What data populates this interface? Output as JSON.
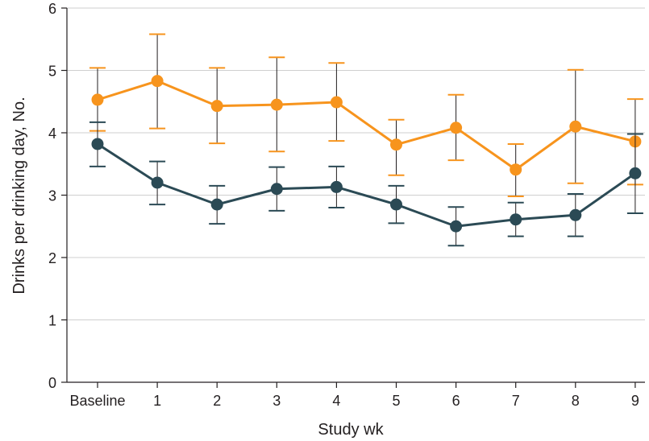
{
  "chart_data": {
    "type": "line",
    "xlabel": "Study wk",
    "ylabel": "Drinks per drinking day, No.",
    "ylim": [
      0,
      6
    ],
    "yticks": [
      "0",
      "1",
      "2",
      "3",
      "4",
      "5",
      "6"
    ],
    "categories": [
      "Baseline",
      "1",
      "2",
      "3",
      "4",
      "5",
      "6",
      "7",
      "8",
      "9"
    ],
    "grid": "horizontal",
    "series": [
      {
        "color": "#f7941d",
        "values": [
          4.53,
          4.83,
          4.43,
          4.45,
          4.49,
          3.81,
          4.08,
          3.41,
          4.1,
          3.86
        ],
        "upper": [
          5.04,
          5.58,
          5.04,
          5.21,
          5.12,
          4.21,
          4.61,
          3.82,
          5.01,
          4.54
        ],
        "lower": [
          4.03,
          4.07,
          3.83,
          3.7,
          3.87,
          3.32,
          3.56,
          2.98,
          3.19,
          3.17
        ]
      },
      {
        "color": "#2b4a55",
        "values": [
          3.82,
          3.2,
          2.85,
          3.1,
          3.13,
          2.85,
          2.5,
          2.61,
          2.68,
          3.35
        ],
        "upper": [
          4.17,
          3.54,
          3.15,
          3.45,
          3.46,
          3.15,
          2.81,
          2.88,
          3.02,
          3.98
        ],
        "lower": [
          3.46,
          2.85,
          2.54,
          2.75,
          2.8,
          2.55,
          2.19,
          2.34,
          2.34,
          2.71
        ]
      }
    ]
  }
}
